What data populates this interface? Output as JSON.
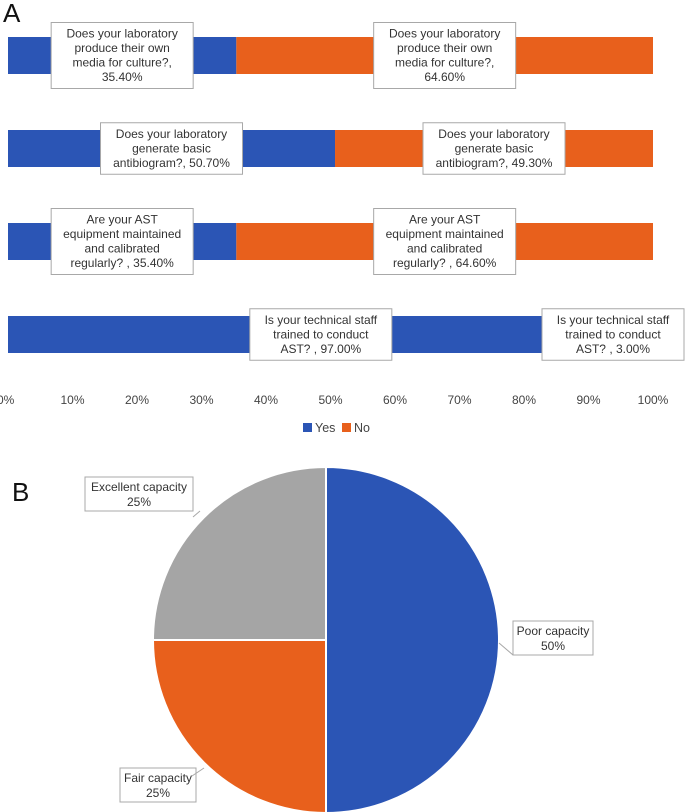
{
  "chart_data": [
    {
      "type": "bar",
      "stacked": true,
      "orientation": "horizontal",
      "panel_label": "A",
      "categories": [
        "Does your laboratory produce their own media for culture?",
        "Does your laboratory generate basic antibiogram?",
        "Are your AST equipment maintained and calibrated regularly?",
        "Is your technical staff trained to conduct AST?"
      ],
      "series": [
        {
          "name": "Yes",
          "color": "#2b55b5",
          "values": [
            35.4,
            50.7,
            35.4,
            97.0
          ],
          "labels": [
            [
              "Does your laboratory",
              "produce their own",
              "media for culture?,",
              "35.40%"
            ],
            [
              "Does your laboratory",
              "generate basic",
              "antibiogram?, 50.70%"
            ],
            [
              "Are your AST",
              "equipment maintained",
              "and calibrated",
              "regularly? , 35.40%"
            ],
            [
              "Is your technical staff",
              "trained to conduct",
              "AST?      , 97.00%"
            ]
          ]
        },
        {
          "name": "No",
          "color": "#e8601c",
          "values": [
            64.6,
            49.3,
            64.6,
            3.0
          ],
          "labels": [
            [
              "Does your laboratory",
              "produce their own",
              "media for culture?,",
              "64.60%"
            ],
            [
              "Does your laboratory",
              "generate basic",
              "antibiogram?, 49.30%"
            ],
            [
              "Are your AST",
              "equipment maintained",
              "and calibrated",
              "regularly? , 64.60%"
            ],
            [
              "Is your technical staff",
              "trained to conduct",
              "AST?      , 3.00%"
            ]
          ]
        }
      ],
      "xlim": [
        0,
        100
      ],
      "xticks": [
        "0%",
        "10%",
        "20%",
        "30%",
        "40%",
        "50%",
        "60%",
        "70%",
        "80%",
        "90%",
        "100%"
      ],
      "legend": [
        {
          "name": "Yes",
          "color": "#2b55b5"
        },
        {
          "name": "No",
          "color": "#e8601c"
        }
      ],
      "legend_position": "bottom"
    },
    {
      "type": "pie",
      "panel_label": "B",
      "slices": [
        {
          "label": "Poor capacity",
          "value": 50,
          "value_text": "50%",
          "color": "#2b55b5"
        },
        {
          "label": "Fair capacity",
          "value": 25,
          "value_text": "25%",
          "color": "#e8601c"
        },
        {
          "label": "Excellent capacity",
          "value": 25,
          "value_text": "25%",
          "color": "#a5a5a5"
        }
      ]
    }
  ]
}
